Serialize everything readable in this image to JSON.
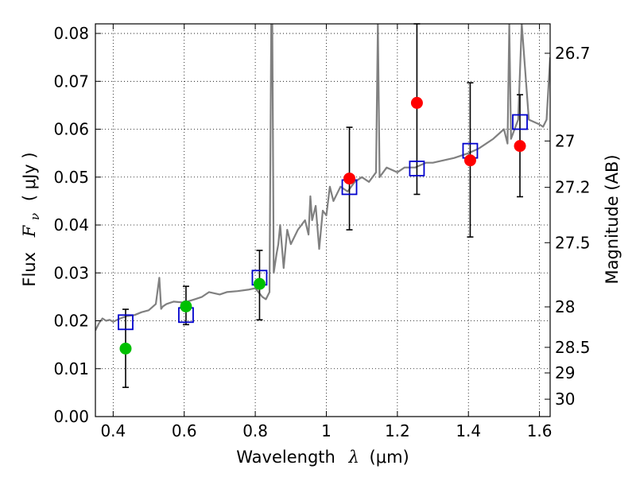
{
  "chart_data": {
    "type": "scatter",
    "title": "",
    "xlabel": "Wavelength",
    "xlabel_symbol": "λ",
    "xlabel_unit": "(μm)",
    "ylabel": "Flux",
    "ylabel_symbol": "F",
    "ylabel_symbol_sub": "ν",
    "ylabel_unit": "( μJy )",
    "y2label": "Magnitude (AB)",
    "xlim": [
      0.35,
      1.63
    ],
    "ylim": [
      0.0,
      0.082
    ],
    "grid": true,
    "x_ticks": [
      0.4,
      0.6,
      0.8,
      1.0,
      1.2,
      1.4,
      1.6
    ],
    "x_tick_labels": [
      "0.4",
      "0.6",
      "0.8",
      "1",
      "1.2",
      "1.4",
      "1.6"
    ],
    "y_ticks": [
      0.0,
      0.01,
      0.02,
      0.03,
      0.04,
      0.05,
      0.06,
      0.07,
      0.08
    ],
    "y_tick_labels": [
      "0.00",
      "0.01",
      "0.02",
      "0.03",
      "0.04",
      "0.05",
      "0.06",
      "0.07",
      "0.08"
    ],
    "mag_ticks": [
      26.7,
      27,
      27.2,
      27.5,
      28,
      28.5,
      29,
      30
    ],
    "mag_tick_labels": [
      "26.7",
      "27",
      "27.2",
      "27.5",
      "28",
      "28.5",
      "29",
      "30"
    ],
    "colors": {
      "model": "#808080",
      "green": "#00c000",
      "red": "#ff0000",
      "model_band": "#0000cc",
      "errorbar": "#000000",
      "grid": "#000000"
    },
    "model_spectrum": {
      "x": [
        0.35,
        0.36,
        0.37,
        0.38,
        0.39,
        0.4,
        0.42,
        0.44,
        0.46,
        0.48,
        0.5,
        0.52,
        0.53,
        0.535,
        0.54,
        0.55,
        0.57,
        0.6,
        0.63,
        0.65,
        0.67,
        0.7,
        0.72,
        0.75,
        0.78,
        0.8,
        0.82,
        0.83,
        0.84,
        0.845,
        0.848,
        0.852,
        0.856,
        0.86,
        0.865,
        0.87,
        0.88,
        0.89,
        0.9,
        0.92,
        0.94,
        0.95,
        0.955,
        0.96,
        0.97,
        0.98,
        0.99,
        1.0,
        1.01,
        1.02,
        1.04,
        1.06,
        1.08,
        1.1,
        1.12,
        1.14,
        1.145,
        1.15,
        1.17,
        1.2,
        1.22,
        1.25,
        1.28,
        1.3,
        1.33,
        1.36,
        1.4,
        1.43,
        1.45,
        1.47,
        1.5,
        1.51,
        1.515,
        1.52,
        1.53,
        1.54,
        1.55,
        1.57,
        1.6,
        1.61,
        1.62,
        1.63
      ],
      "y": [
        0.018,
        0.0195,
        0.0205,
        0.02,
        0.0202,
        0.0198,
        0.0205,
        0.021,
        0.0212,
        0.0218,
        0.0222,
        0.0235,
        0.029,
        0.0225,
        0.023,
        0.0235,
        0.024,
        0.0238,
        0.0245,
        0.025,
        0.026,
        0.0255,
        0.026,
        0.0262,
        0.0265,
        0.0268,
        0.025,
        0.0245,
        0.026,
        0.082,
        0.082,
        0.03,
        0.032,
        0.034,
        0.036,
        0.04,
        0.031,
        0.039,
        0.036,
        0.039,
        0.041,
        0.038,
        0.046,
        0.041,
        0.044,
        0.035,
        0.043,
        0.042,
        0.048,
        0.045,
        0.048,
        0.047,
        0.049,
        0.05,
        0.049,
        0.051,
        0.082,
        0.05,
        0.052,
        0.051,
        0.052,
        0.052,
        0.053,
        0.053,
        0.0535,
        0.054,
        0.055,
        0.056,
        0.057,
        0.058,
        0.06,
        0.057,
        0.082,
        0.058,
        0.06,
        0.062,
        0.082,
        0.062,
        0.061,
        0.0605,
        0.062,
        0.075
      ]
    },
    "series": [
      {
        "marker": "circle",
        "color": "#00c000",
        "points": [
          {
            "x": 0.435,
            "y": 0.0142,
            "err_lo": 0.0061,
            "err_hi": 0.0224
          },
          {
            "x": 0.605,
            "y": 0.023,
            "err_lo": 0.0192,
            "err_hi": 0.0272
          },
          {
            "x": 0.812,
            "y": 0.0277,
            "err_lo": 0.0202,
            "err_hi": 0.0347
          }
        ]
      },
      {
        "marker": "circle",
        "color": "#ff0000",
        "points": [
          {
            "x": 1.065,
            "y": 0.0497,
            "err_lo": 0.039,
            "err_hi": 0.0604
          },
          {
            "x": 1.255,
            "y": 0.0655,
            "err_lo": 0.0464,
            "err_hi": 0.082
          },
          {
            "x": 1.405,
            "y": 0.0535,
            "err_lo": 0.0375,
            "err_hi": 0.0697
          },
          {
            "x": 1.545,
            "y": 0.0565,
            "err_lo": 0.0459,
            "err_hi": 0.0672
          }
        ]
      },
      {
        "marker": "square-open",
        "color": "#0000cc",
        "points": [
          {
            "x": 0.435,
            "y": 0.0197
          },
          {
            "x": 0.605,
            "y": 0.0212
          },
          {
            "x": 0.812,
            "y": 0.029
          },
          {
            "x": 1.065,
            "y": 0.0479
          },
          {
            "x": 1.255,
            "y": 0.0518
          },
          {
            "x": 1.405,
            "y": 0.0555
          },
          {
            "x": 1.545,
            "y": 0.0615
          }
        ]
      }
    ]
  }
}
